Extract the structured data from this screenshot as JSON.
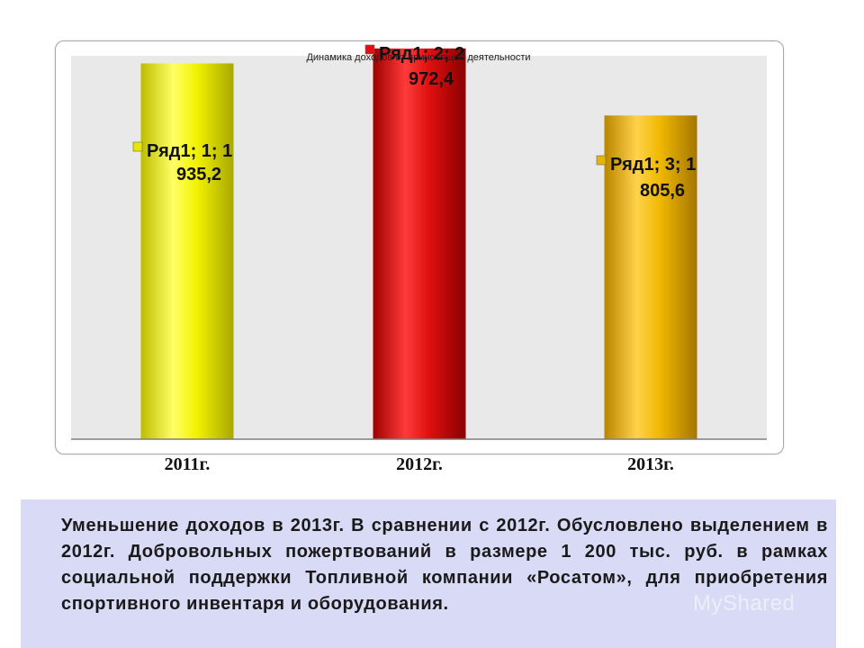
{
  "chart_data": {
    "type": "bar",
    "title": "Динамика доходов от приносящей деятельности",
    "categories": [
      "2011г.",
      "2012г.",
      "2013г."
    ],
    "series": [
      {
        "name": "Ряд1",
        "values": [
          935.2,
          972.4,
          805.6
        ],
        "data_labels": [
          {
            "line1": "Ряд1; 1; 1",
            "line2": "935,2"
          },
          {
            "line1": "Ряд1; 2; 2",
            "line2": "972,4"
          },
          {
            "line1": "Ряд1; 3; 1",
            "line2": "805,6"
          }
        ]
      }
    ],
    "bar_colors": [
      "#e6e600",
      "#e01010",
      "#e8b400"
    ],
    "legend_key_colors": [
      "#e6e600",
      "#e01010",
      "#e8b400"
    ],
    "ylim": [
      0,
      1000
    ],
    "grid": false,
    "axis_labels": {
      "xlabel": "",
      "ylabel": ""
    }
  },
  "caption": {
    "text": "Уменьшение доходов в 2013г. В сравнении с 2012г. Обусловлено выделением в 2012г. Добровольных пожертвований в размере 1 200 тыс. руб. в рамках социальной поддержки Топливной компании «Росатом», для приобретения спортивного инвентаря и оборудования."
  },
  "watermark": {
    "text": "MyShared"
  }
}
